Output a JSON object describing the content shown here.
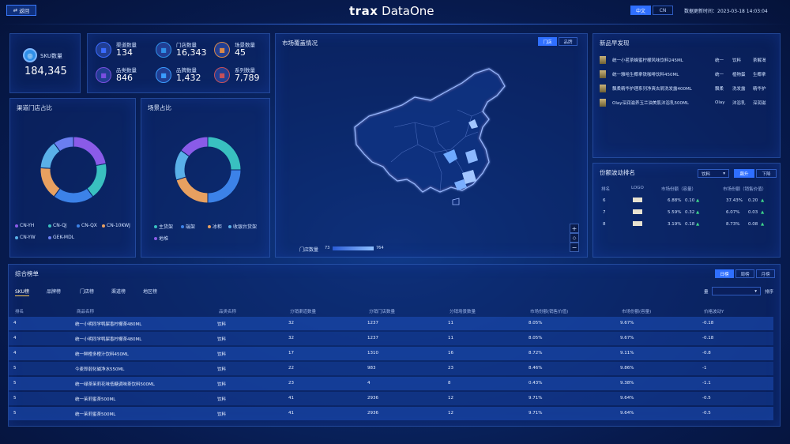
{
  "header": {
    "back_label": "返回",
    "logo_brand": "trax",
    "logo_product": "DataOne",
    "lang_zh": "中文",
    "lang_en": "CN",
    "updated_label": "数据更新时间：2023-03-18 14:03:04"
  },
  "sku": {
    "label": "SKU数量",
    "value": "184,345"
  },
  "kpis": [
    {
      "label": "渠道数量",
      "value": "134",
      "icon": "network-icon",
      "color": "#3a6cff"
    },
    {
      "label": "门店数量",
      "value": "16,343",
      "icon": "store-icon",
      "color": "#2f8fe8"
    },
    {
      "label": "场景数量",
      "value": "45",
      "icon": "scene-icon",
      "color": "#d9894a"
    },
    {
      "label": "品类数量",
      "value": "846",
      "icon": "category-icon",
      "color": "#7a4ee0"
    },
    {
      "label": "品牌数量",
      "value": "1,432",
      "icon": "tag-icon",
      "color": "#3a9cff"
    },
    {
      "label": "系列数量",
      "value": "7,789",
      "icon": "grid-icon",
      "color": "#c7505a"
    }
  ],
  "channel_share": {
    "title": "渠道门店占比",
    "legend": [
      "CN-YH",
      "CN-QJ",
      "CN-QX",
      "CN-10KWJ",
      "CN-YW",
      "GEK-MDL"
    ],
    "chart_data": {
      "type": "pie",
      "categories": [
        "CN-YH",
        "CN-QJ",
        "CN-QX",
        "CN-10KWJ",
        "CN-YW",
        "GEK-MDL"
      ],
      "values": [
        22,
        18,
        20,
        16,
        14,
        10
      ],
      "colors": [
        "#8a5be8",
        "#39c0c0",
        "#3c82e8",
        "#e8a060",
        "#5ab0e8",
        "#6a7ef0"
      ]
    }
  },
  "scene_share": {
    "title": "场景占比",
    "legend": [
      "主货架",
      "端架",
      "冰柜",
      "收银台货架",
      "地堆"
    ],
    "chart_data": {
      "type": "pie",
      "categories": [
        "主货架",
        "端架",
        "冰柜",
        "收银台货架",
        "地堆"
      ],
      "values": [
        25,
        25,
        20,
        15,
        15
      ],
      "colors": [
        "#39c0c0",
        "#3c82e8",
        "#e8a060",
        "#5ab0e8",
        "#8a5be8"
      ]
    }
  },
  "map": {
    "title": "市场覆盖情况",
    "toggle_store": "门店",
    "toggle_brand": "品牌",
    "legend_label": "门店数量",
    "legend_min": "73",
    "legend_max": "764",
    "zoom_in": "+",
    "reset": "◇",
    "zoom_out": "−"
  },
  "new_products": {
    "title": "新品早发现",
    "rows": [
      {
        "name": "统一小茗茶蜂蜜柠檬风味饮料245ML",
        "brand": "统一",
        "category": "饮料",
        "series": "茶解渴"
      },
      {
        "name": "统一雅哈生椰拿铁咖啡饮料450ML",
        "brand": "统一",
        "category": "植物蛋",
        "series": "生椰拿"
      },
      {
        "name": "飘柔精华护理系列净爽去屑洗发露400ML",
        "brand": "飘柔",
        "category": "洗发露",
        "series": "精华护"
      },
      {
        "name": "Olay深润滋养玉兰油美肌沐浴乳500ML",
        "brand": "Olay",
        "category": "沐浴乳",
        "series": "深润滋"
      }
    ]
  },
  "share_rank": {
    "title": "份额波动排名",
    "select_value": "饮料",
    "toggle_up": "飙升",
    "toggle_down": "下降",
    "headers": [
      "排名",
      "LOGO",
      "市场份额（容量）",
      "市场份额（销售价值）"
    ],
    "rows": [
      {
        "rank": "6",
        "cap": "6.88%",
        "cap_delta": "0.10",
        "val": "37.43%",
        "val_delta": "0.20"
      },
      {
        "rank": "7",
        "cap": "5.59%",
        "cap_delta": "0.32",
        "val": "6.07%",
        "val_delta": "0.03"
      },
      {
        "rank": "8",
        "cap": "3.19%",
        "cap_delta": "0.18",
        "val": "8.73%",
        "val_delta": "0.08"
      }
    ]
  },
  "ranking": {
    "title": "综合榜单",
    "period_tabs": [
      "日榜",
      "周榜",
      "月榜"
    ],
    "tabs": [
      "SKU榜",
      "品牌榜",
      "门店榜",
      "渠道榜",
      "地区榜"
    ],
    "filter_label": "量",
    "sort_label": "排序",
    "headers": [
      "排名",
      "商品名称",
      "品类名称",
      "分销渠道数量",
      "分销门店数量",
      "分销场景数量",
      "市场份额(销售价值)",
      "市场份额(容量)",
      "价格波动Y"
    ],
    "rows": [
      [
        "4",
        "统一小明同学鸭屎香柠檬茶480ML",
        "饮料",
        "32",
        "1237",
        "11",
        "8.05%",
        "9.67%",
        "-0.18"
      ],
      [
        "4",
        "统一小明同学鸭屎香柠檬茶480ML",
        "饮料",
        "32",
        "1237",
        "11",
        "8.05%",
        "9.67%",
        "-0.18"
      ],
      [
        "4",
        "统一鲜橙多橙汁饮料450ML",
        "饮料",
        "17",
        "1310",
        "16",
        "8.72%",
        "9.11%",
        "-0.8"
      ],
      [
        "5",
        "今麦郎弱化碱净水550ML",
        "饮料",
        "22",
        "983",
        "23",
        "8.46%",
        "9.86%",
        "-1"
      ],
      [
        "5",
        "统一绿茶茉莉花味低糖调味茶饮料500ML",
        "饮料",
        "23",
        "4",
        "8",
        "0.43%",
        "9.38%",
        "-1.1"
      ],
      [
        "5",
        "统一茉莉蜜茶500ML",
        "饮料",
        "41",
        "2936",
        "12",
        "9.71%",
        "9.64%",
        "-0.5"
      ],
      [
        "5",
        "统一茉莉蜜茶500ML",
        "饮料",
        "41",
        "2936",
        "12",
        "9.71%",
        "9.64%",
        "-0.5"
      ]
    ]
  }
}
